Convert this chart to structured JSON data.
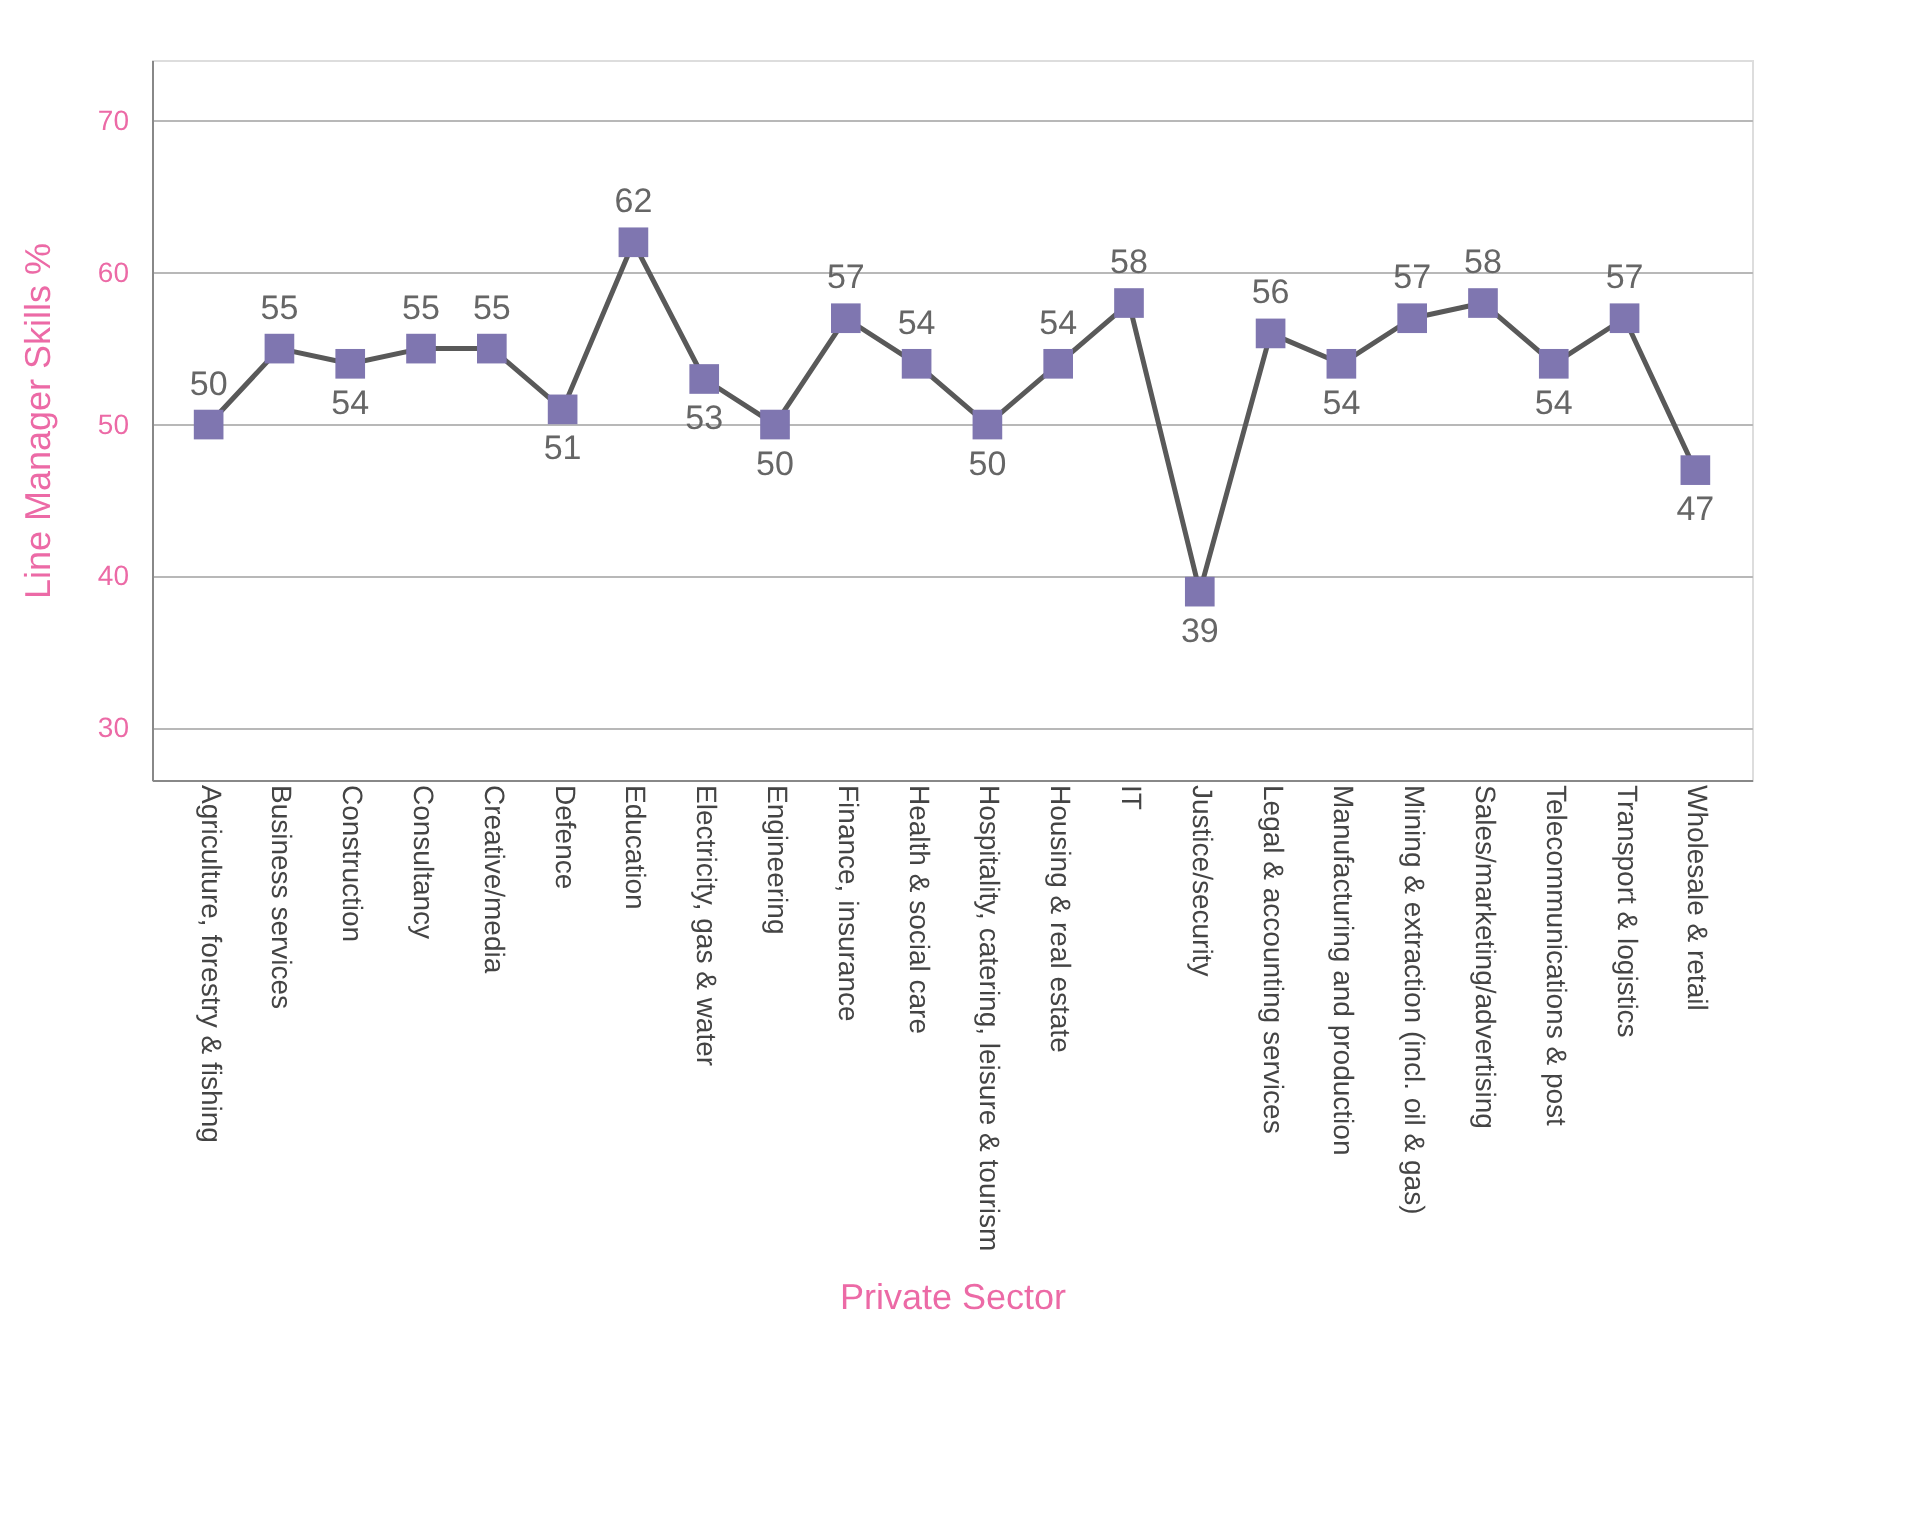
{
  "chart_data": {
    "type": "line",
    "xlabel": "Private Sector",
    "ylabel": "Line Manager Skills %",
    "categories": [
      "Agriculture, forestry & fishing",
      "Business services",
      "Construction",
      "Consultancy",
      "Creative/media",
      "Defence",
      "Education",
      "Electricity, gas & water",
      "Engineering",
      "Finance, insurance",
      "Health & social care",
      "Hospitality, catering, leisure & tourism",
      "Housing & real estate",
      "IT",
      "Justice/security",
      "Legal & accounting services",
      "Manufacturing and production",
      "Mining & extraction (incl. oil & gas)",
      "Sales/marketing/advertising",
      "Telecommunications & post",
      "Transport & logistics",
      "Wholesale & retail"
    ],
    "series": [
      {
        "color": "#7f76b0",
        "values": [
          50,
          55,
          54,
          55,
          55,
          51,
          62,
          53,
          50,
          57,
          54,
          50,
          54,
          58,
          39,
          56,
          54,
          57,
          58,
          54,
          57,
          47
        ]
      }
    ],
    "ylim": [
      26.6,
      74
    ],
    "yticks": [
      30,
      40,
      50,
      60,
      70
    ],
    "grid": "y",
    "marker": "square",
    "line_style": "solid",
    "data_labels": true
  }
}
